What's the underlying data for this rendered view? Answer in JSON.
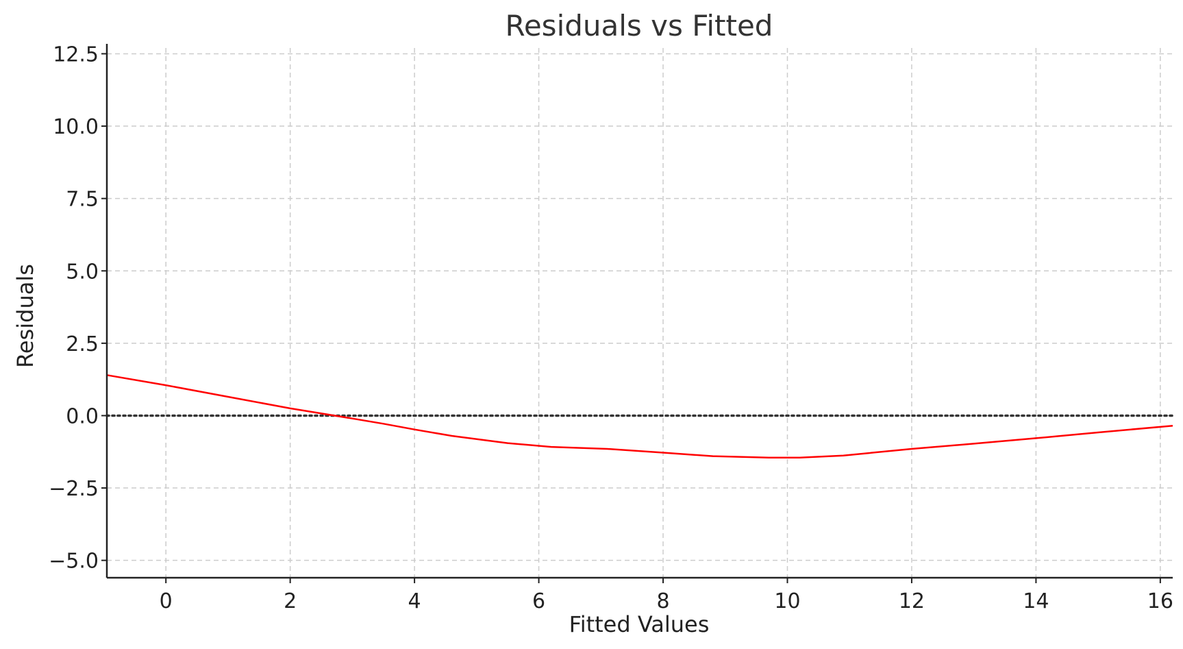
{
  "chart_data": {
    "type": "line",
    "title": "Residuals vs Fitted",
    "xlabel": "Fitted Values",
    "ylabel": "Residuals",
    "xlim": [
      -0.95,
      16.2
    ],
    "ylim": [
      -5.6,
      12.7
    ],
    "xticks": [
      0,
      2,
      4,
      6,
      8,
      10,
      12,
      14,
      16
    ],
    "xtick_labels": [
      "0",
      "2",
      "4",
      "6",
      "8",
      "10",
      "12",
      "14",
      "16"
    ],
    "yticks": [
      -5.0,
      -2.5,
      0.0,
      2.5,
      5.0,
      7.5,
      10.0,
      12.5
    ],
    "ytick_labels": [
      "−5.0",
      "−2.5",
      "0.0",
      "2.5",
      "5.0",
      "7.5",
      "10.0",
      "12.5"
    ],
    "grid": true,
    "reference_line": {
      "y": 0.0,
      "style": "dotted",
      "color": "#333333"
    },
    "series": [
      {
        "color": "#ff0000",
        "x": [
          -0.95,
          0.0,
          1.0,
          2.0,
          3.0,
          3.5,
          4.0,
          4.6,
          5.5,
          6.2,
          7.1,
          8.0,
          8.8,
          9.7,
          10.2,
          10.9,
          12.0,
          13.0,
          14.0,
          15.0,
          16.2
        ],
        "y": [
          1.4,
          1.05,
          0.65,
          0.25,
          -0.1,
          -0.28,
          -0.48,
          -0.7,
          -0.95,
          -1.08,
          -1.15,
          -1.28,
          -1.4,
          -1.45,
          -1.45,
          -1.38,
          -1.15,
          -0.97,
          -0.78,
          -0.58,
          -0.35
        ]
      }
    ]
  }
}
